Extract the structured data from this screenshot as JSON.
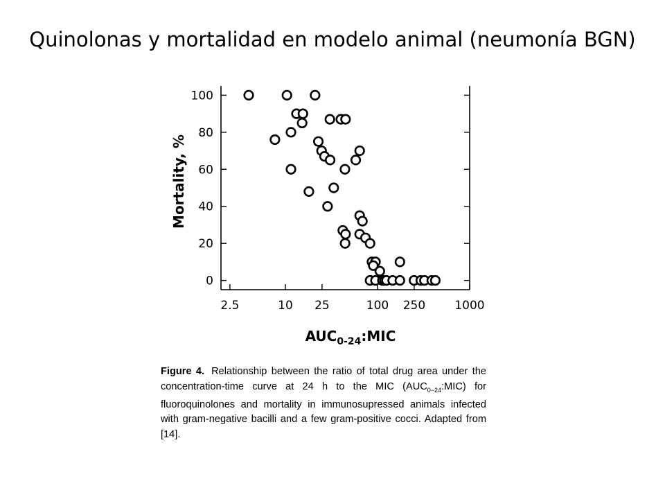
{
  "slide": {
    "title": "Quinolonas y mortalidad en modelo animal (neumonía BGN)"
  },
  "chart_data": {
    "type": "scatter",
    "xlabel": "AUC0-24:MIC",
    "xlabel_main": "AUC",
    "xlabel_sub": "0-24",
    "xlabel_tail": ":MIC",
    "ylabel": "Mortality, %",
    "x_scale": "log",
    "xlim": [
      2.0,
      1000
    ],
    "ylim": [
      -5,
      105
    ],
    "x_ticks": [
      {
        "value": 2.5,
        "label": "2.5"
      },
      {
        "value": 10,
        "label": "10"
      },
      {
        "value": 25,
        "label": "25"
      },
      {
        "value": 100,
        "label": "100"
      },
      {
        "value": 250,
        "label": "250"
      },
      {
        "value": 1000,
        "label": "1000"
      }
    ],
    "y_ticks": [
      {
        "value": 0,
        "label": "0"
      },
      {
        "value": 20,
        "label": "20"
      },
      {
        "value": 40,
        "label": "40"
      },
      {
        "value": 60,
        "label": "60"
      },
      {
        "value": 80,
        "label": "80"
      },
      {
        "value": 100,
        "label": "100"
      }
    ],
    "grid": false,
    "points": [
      {
        "x": 4,
        "y": 100
      },
      {
        "x": 10.4,
        "y": 100
      },
      {
        "x": 21,
        "y": 100
      },
      {
        "x": 7.7,
        "y": 76
      },
      {
        "x": 11.5,
        "y": 80
      },
      {
        "x": 13.2,
        "y": 90
      },
      {
        "x": 15.5,
        "y": 90
      },
      {
        "x": 15.2,
        "y": 85
      },
      {
        "x": 11.5,
        "y": 60
      },
      {
        "x": 18,
        "y": 48
      },
      {
        "x": 22.8,
        "y": 75
      },
      {
        "x": 24.7,
        "y": 70
      },
      {
        "x": 26.6,
        "y": 67
      },
      {
        "x": 30.6,
        "y": 65
      },
      {
        "x": 30.4,
        "y": 87
      },
      {
        "x": 40,
        "y": 87
      },
      {
        "x": 45,
        "y": 87
      },
      {
        "x": 33.5,
        "y": 50
      },
      {
        "x": 44.3,
        "y": 60
      },
      {
        "x": 58,
        "y": 65
      },
      {
        "x": 64,
        "y": 70
      },
      {
        "x": 28.7,
        "y": 40
      },
      {
        "x": 64,
        "y": 35
      },
      {
        "x": 68.6,
        "y": 32
      },
      {
        "x": 42,
        "y": 27
      },
      {
        "x": 45,
        "y": 25
      },
      {
        "x": 64,
        "y": 25
      },
      {
        "x": 74,
        "y": 23
      },
      {
        "x": 44.5,
        "y": 20
      },
      {
        "x": 83,
        "y": 20
      },
      {
        "x": 87,
        "y": 10
      },
      {
        "x": 95,
        "y": 10
      },
      {
        "x": 90,
        "y": 8
      },
      {
        "x": 106,
        "y": 5
      },
      {
        "x": 175,
        "y": 10
      },
      {
        "x": 83,
        "y": 0
      },
      {
        "x": 95,
        "y": 0
      },
      {
        "x": 113,
        "y": 0
      },
      {
        "x": 119,
        "y": 0
      },
      {
        "x": 125,
        "y": 0
      },
      {
        "x": 146,
        "y": 0
      },
      {
        "x": 175,
        "y": 0
      },
      {
        "x": 249,
        "y": 0
      },
      {
        "x": 295,
        "y": 0
      },
      {
        "x": 323,
        "y": 0
      },
      {
        "x": 388,
        "y": 0
      },
      {
        "x": 424,
        "y": 0
      }
    ]
  },
  "caption": {
    "label": "Figure 4.",
    "text_before": "Relationship between the ratio of total drug area under the concentration-time curve at 24 h to the MIC (AUC",
    "text_sub": "0−24",
    "text_after": ":MIC) for fluoroquinolones and mortality in immunosupressed animals infected with gram-negative bacilli and a few gram-positive cocci. Adapted from [14]."
  }
}
